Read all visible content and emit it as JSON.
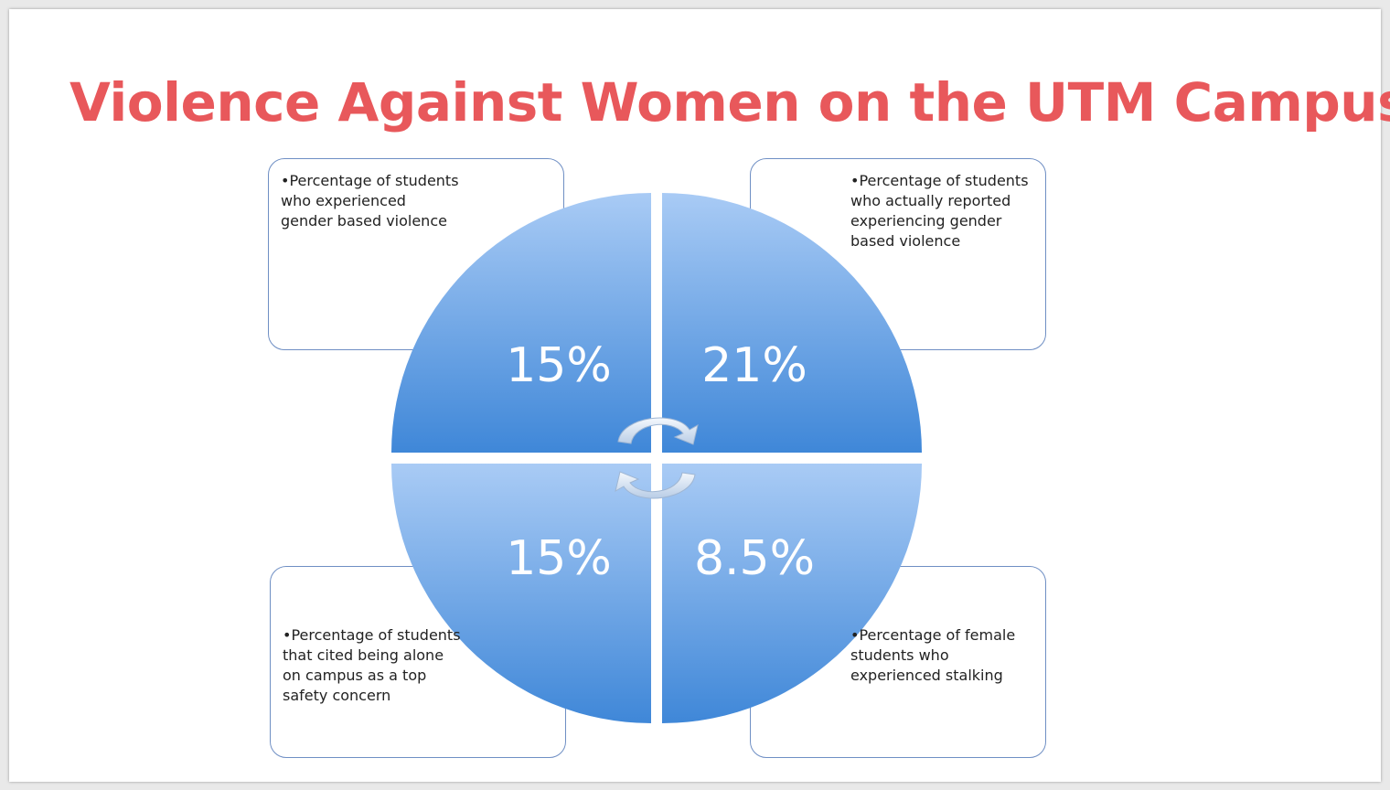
{
  "slide": {
    "title": "Violence Against Women on the UTM Campus"
  },
  "quadrants": [
    {
      "id": "top-left",
      "value": "15%",
      "description": "•Percentage of students\nwho experienced\ngender based violence"
    },
    {
      "id": "top-right",
      "value": "21%",
      "description": "•Percentage of students\nwho actually reported\nexperiencing  gender\nbased violence"
    },
    {
      "id": "bottom-left",
      "value": "15%",
      "description": "•Percentage of students\nthat cited being alone\non campus as a top\nsafety concern"
    },
    {
      "id": "bottom-right",
      "value": "8.5%",
      "description": "•Percentage of female\nstudents who\nexperienced stalking"
    }
  ],
  "colors": {
    "title": "#e8585b",
    "quadrant_light": "#a9cbf5",
    "quadrant_dark": "#3f87d8",
    "box_border": "#6f8fc4"
  }
}
